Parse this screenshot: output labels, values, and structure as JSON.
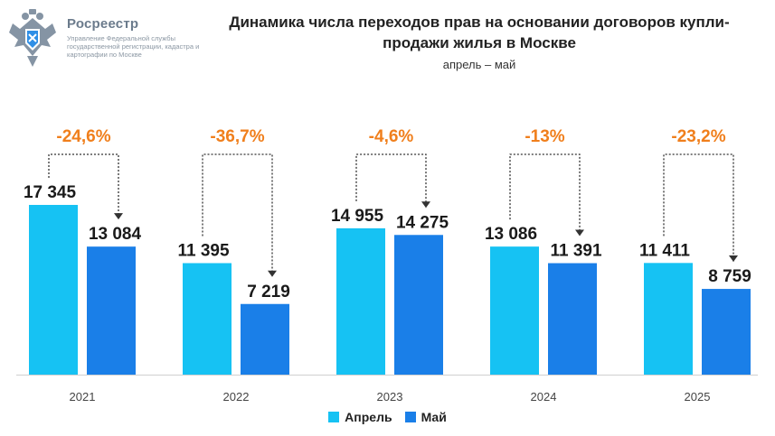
{
  "header": {
    "logo_name": "Росреестр",
    "logo_subtitle": "Управление Федеральной службы государственной регистрации, кадастра и картографии по Москве",
    "title": "Динамика числа переходов прав на основании договоров купли-продажи жилья в Москве",
    "subtitle": "апрель – май"
  },
  "colors": {
    "april": "#16c2f3",
    "may": "#1a7fe8",
    "change": "#f07f1c",
    "axis": "#d0d0d0"
  },
  "chart_data": {
    "type": "bar",
    "categories": [
      "2021",
      "2022",
      "2023",
      "2024",
      "2025"
    ],
    "series": [
      {
        "name": "Апрель",
        "values": [
          17345,
          11395,
          14955,
          13086,
          11411
        ],
        "labels": [
          "17 345",
          "11 395",
          "14 955",
          "13 086",
          "11 411"
        ]
      },
      {
        "name": "Май",
        "values": [
          13084,
          7219,
          14275,
          11391,
          8759
        ],
        "labels": [
          "13 084",
          "7 219",
          "14 275",
          "11 391",
          "8 759"
        ]
      }
    ],
    "changes": [
      "-24,6%",
      "-36,7%",
      "-4,6%",
      "-13%",
      "-23,2%"
    ],
    "legend": "bottom-center",
    "grid": false
  }
}
